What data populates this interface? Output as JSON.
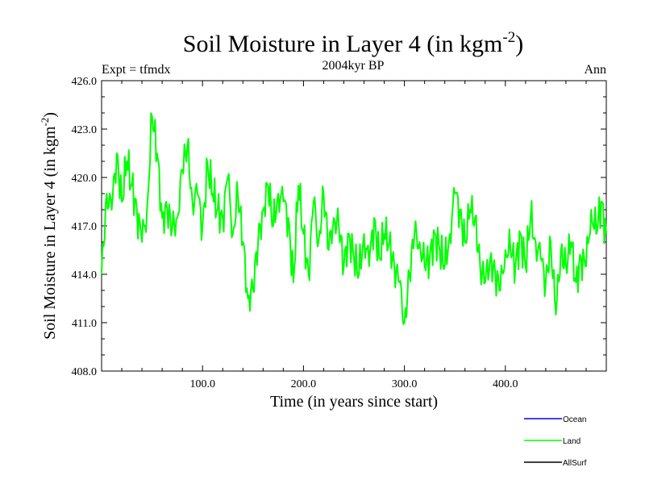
{
  "chart_data": {
    "type": "line",
    "title": "Soil Moisture in Layer 4 (in kgm",
    "title_sup": "-2",
    "title_close": ")",
    "subtitle": "2004kyr BP",
    "left_label": "Expt = tfmdx",
    "right_label": "Ann",
    "xlabel": "Time (in years since start)",
    "ylabel": "Soil Moisture in Layer 4 (in kgm",
    "ylabel_sup": "-2",
    "ylabel_close": ")",
    "xlim": [
      0,
      500
    ],
    "ylim": [
      408,
      426
    ],
    "x_ticks": [
      100,
      200,
      300,
      400
    ],
    "x_tick_labels": [
      "100.0",
      "200.0",
      "300.0",
      "400.0"
    ],
    "y_ticks": [
      408,
      411,
      414,
      417,
      420,
      423,
      426
    ],
    "y_tick_labels": [
      "408.0",
      "411.0",
      "414.0",
      "417.0",
      "420.0",
      "423.0",
      "426.0"
    ],
    "legend": [
      {
        "name": "Ocean",
        "color": "#0000ff"
      },
      {
        "name": "Land",
        "color": "#00ff00"
      },
      {
        "name": "AllSurf",
        "color": "#000000"
      }
    ],
    "series": [
      {
        "name": "Land",
        "color": "#00ff00",
        "x": [
          0,
          5,
          10,
          15,
          20,
          25,
          30,
          35,
          40,
          45,
          50,
          55,
          60,
          65,
          70,
          75,
          80,
          85,
          90,
          95,
          100,
          105,
          110,
          115,
          120,
          125,
          130,
          135,
          140,
          145,
          150,
          155,
          160,
          165,
          170,
          175,
          180,
          185,
          190,
          195,
          200,
          205,
          210,
          215,
          220,
          225,
          230,
          235,
          240,
          245,
          250,
          255,
          260,
          265,
          270,
          275,
          280,
          285,
          290,
          295,
          300,
          305,
          310,
          315,
          320,
          325,
          330,
          335,
          340,
          345,
          350,
          355,
          360,
          365,
          370,
          375,
          380,
          385,
          390,
          395,
          400,
          405,
          410,
          415,
          420,
          425,
          430,
          435,
          440,
          445,
          450,
          455,
          460,
          465,
          470,
          475,
          480,
          485,
          490,
          495,
          500
        ],
        "values": [
          414.0,
          419.0,
          418.0,
          421.5,
          418.5,
          421.0,
          419.5,
          418.0,
          416.0,
          418.0,
          423.8,
          421.5,
          417.5,
          418.0,
          416.8,
          417.5,
          420.5,
          422.0,
          418.5,
          419.0,
          417.0,
          420.8,
          419.0,
          418.0,
          417.5,
          420.0,
          416.5,
          419.0,
          416.0,
          412.5,
          413.0,
          416.0,
          418.0,
          419.5,
          417.0,
          419.0,
          418.5,
          417.5,
          413.5,
          419.5,
          416.5,
          414.0,
          418.5,
          416.0,
          419.0,
          415.5,
          417.5,
          417.0,
          414.5,
          416.5,
          415.0,
          414.0,
          416.5,
          414.5,
          417.5,
          415.0,
          416.5,
          416.0,
          414.5,
          413.5,
          411.0,
          414.0,
          416.5,
          416.0,
          414.5,
          415.0,
          416.5,
          415.5,
          414.5,
          416.5,
          419.0,
          418.0,
          416.0,
          418.0,
          417.5,
          414.5,
          413.5,
          415.0,
          414.0,
          413.0,
          415.5,
          415.5,
          414.5,
          416.5,
          414.5,
          417.5,
          416.0,
          415.0,
          413.5,
          416.0,
          411.5,
          415.5,
          414.5,
          416.0,
          413.5,
          415.0,
          414.5,
          418.0,
          416.5,
          418.5,
          416.5
        ]
      }
    ]
  }
}
